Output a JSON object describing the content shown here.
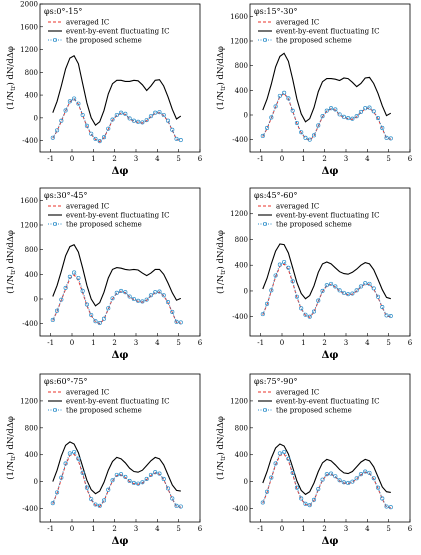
{
  "axis_labels": {
    "x": "Δφ",
    "y_prefix": "(1/N",
    "y_sub": "tr",
    "y_suffix": ") dN/dΔφ"
  },
  "legend": {
    "averaged": "averaged IC",
    "ebe": "event-by-event fluctuating IC",
    "proposed": "the proposed scheme"
  },
  "colors": {
    "averaged": "#e8312a",
    "ebe": "#000000",
    "proposed": "#2a8cc8"
  },
  "chart_data": [
    {
      "type": "line",
      "title": "φs:0°-15°",
      "xlim": [
        -1.5,
        6
      ],
      "ylim": [
        -600,
        2000
      ],
      "yticks": [
        -400,
        0,
        400,
        800,
        1200,
        1600,
        2000
      ],
      "xticks": [
        -1,
        0,
        1,
        2,
        3,
        4,
        5,
        6
      ],
      "x": [
        -0.9,
        -0.7,
        -0.5,
        -0.3,
        -0.1,
        0.1,
        0.3,
        0.5,
        0.7,
        0.9,
        1.1,
        1.3,
        1.5,
        1.7,
        1.9,
        2.1,
        2.3,
        2.5,
        2.7,
        2.9,
        3.1,
        3.3,
        3.5,
        3.7,
        3.9,
        4.1,
        4.3,
        4.5,
        4.7,
        4.9,
        5.1
      ],
      "series": [
        {
          "name": "event-by-event fluctuating IC",
          "values": [
            90,
            290,
            560,
            860,
            1050,
            1090,
            950,
            600,
            260,
            0,
            -130,
            -70,
            130,
            420,
            600,
            660,
            660,
            640,
            640,
            660,
            650,
            580,
            480,
            560,
            660,
            670,
            560,
            370,
            150,
            -20,
            30
          ]
        },
        {
          "name": "averaged IC",
          "values": [
            -360,
            -230,
            -60,
            120,
            280,
            330,
            240,
            40,
            -150,
            -290,
            -380,
            -420,
            -350,
            -200,
            -40,
            40,
            80,
            60,
            -20,
            -60,
            -80,
            -90,
            -50,
            20,
            80,
            90,
            40,
            -60,
            -220,
            -380,
            -400
          ]
        },
        {
          "name": "the proposed scheme",
          "values": [
            -350,
            -220,
            -50,
            130,
            290,
            340,
            250,
            50,
            -140,
            -280,
            -370,
            -410,
            -340,
            -190,
            -30,
            50,
            90,
            70,
            -10,
            -50,
            -70,
            -80,
            -40,
            30,
            90,
            100,
            50,
            -50,
            -210,
            -370,
            -390
          ]
        }
      ]
    },
    {
      "type": "line",
      "title": "φs:15°-30°",
      "xlim": [
        -1.5,
        6
      ],
      "ylim": [
        -600,
        1800
      ],
      "yticks": [
        -400,
        0,
        400,
        800,
        1200,
        1600
      ],
      "xticks": [
        -1,
        0,
        1,
        2,
        3,
        4,
        5,
        6
      ],
      "x": [
        -0.9,
        -0.7,
        -0.5,
        -0.3,
        -0.1,
        0.1,
        0.3,
        0.5,
        0.7,
        0.9,
        1.1,
        1.3,
        1.5,
        1.7,
        1.9,
        2.1,
        2.3,
        2.5,
        2.7,
        2.9,
        3.1,
        3.3,
        3.5,
        3.7,
        3.9,
        4.1,
        4.3,
        4.5,
        4.7,
        4.9,
        5.1
      ],
      "series": [
        {
          "name": "event-by-event fluctuating IC",
          "values": [
            80,
            260,
            500,
            780,
            950,
            1000,
            870,
            580,
            260,
            20,
            -110,
            -60,
            120,
            380,
            540,
            590,
            590,
            580,
            560,
            600,
            590,
            530,
            460,
            510,
            600,
            610,
            510,
            350,
            150,
            -10,
            30
          ]
        },
        {
          "name": "averaged IC",
          "values": [
            -350,
            -220,
            -50,
            130,
            300,
            350,
            260,
            60,
            -140,
            -290,
            -380,
            -410,
            -340,
            -180,
            -30,
            60,
            100,
            80,
            0,
            -40,
            -60,
            -70,
            -30,
            40,
            100,
            110,
            50,
            -60,
            -220,
            -380,
            -390
          ]
        },
        {
          "name": "the proposed scheme",
          "values": [
            -340,
            -210,
            -40,
            140,
            310,
            360,
            270,
            70,
            -130,
            -280,
            -370,
            -400,
            -330,
            -170,
            -20,
            70,
            110,
            90,
            10,
            -30,
            -50,
            -60,
            -20,
            50,
            110,
            120,
            60,
            -50,
            -210,
            -370,
            -380
          ]
        }
      ]
    },
    {
      "type": "line",
      "title": "φs:30°-45°",
      "xlim": [
        -1.5,
        6
      ],
      "ylim": [
        -600,
        1800
      ],
      "yticks": [
        -400,
        0,
        400,
        800,
        1200,
        1600
      ],
      "xticks": [
        -1,
        0,
        1,
        2,
        3,
        4,
        5,
        6
      ],
      "x": [
        -0.9,
        -0.7,
        -0.5,
        -0.3,
        -0.1,
        0.1,
        0.3,
        0.5,
        0.7,
        0.9,
        1.1,
        1.3,
        1.5,
        1.7,
        1.9,
        2.1,
        2.3,
        2.5,
        2.7,
        2.9,
        3.1,
        3.3,
        3.5,
        3.7,
        3.9,
        4.1,
        4.3,
        4.5,
        4.7,
        4.9,
        5.1
      ],
      "series": [
        {
          "name": "event-by-event fluctuating IC",
          "values": [
            40,
            220,
            450,
            700,
            850,
            880,
            760,
            500,
            220,
            0,
            -110,
            -60,
            110,
            340,
            480,
            510,
            500,
            480,
            470,
            480,
            470,
            420,
            380,
            420,
            480,
            480,
            400,
            260,
            100,
            -20,
            10
          ]
        },
        {
          "name": "averaged IC",
          "values": [
            -350,
            -200,
            -20,
            160,
            330,
            390,
            300,
            100,
            -110,
            -270,
            -370,
            -400,
            -330,
            -160,
            0,
            90,
            120,
            100,
            30,
            -10,
            -40,
            -50,
            -20,
            50,
            100,
            110,
            50,
            -60,
            -220,
            -380,
            -390
          ]
        },
        {
          "name": "the proposed scheme",
          "values": [
            -340,
            -190,
            -10,
            180,
            360,
            430,
            340,
            130,
            -90,
            -260,
            -360,
            -390,
            -320,
            -150,
            10,
            100,
            130,
            110,
            40,
            0,
            -30,
            -40,
            -10,
            60,
            110,
            120,
            60,
            -50,
            -210,
            -370,
            -380
          ]
        }
      ]
    },
    {
      "type": "line",
      "title": "φs:45°-60°",
      "xlim": [
        -1.5,
        6
      ],
      "ylim": [
        -700,
        1600
      ],
      "yticks": [
        -400,
        0,
        400,
        800,
        1200
      ],
      "xticks": [
        -1,
        0,
        1,
        2,
        3,
        4,
        5,
        6
      ],
      "x": [
        -0.9,
        -0.7,
        -0.5,
        -0.3,
        -0.1,
        0.1,
        0.3,
        0.5,
        0.7,
        0.9,
        1.1,
        1.3,
        1.5,
        1.7,
        1.9,
        2.1,
        2.3,
        2.5,
        2.7,
        2.9,
        3.1,
        3.3,
        3.5,
        3.7,
        3.9,
        4.1,
        4.3,
        4.5,
        4.7,
        4.9,
        5.1
      ],
      "series": [
        {
          "name": "event-by-event fluctuating IC",
          "values": [
            30,
            200,
            420,
            620,
            730,
            720,
            590,
            360,
            130,
            -40,
            -120,
            -70,
            80,
            290,
            420,
            450,
            420,
            360,
            300,
            270,
            260,
            290,
            340,
            400,
            440,
            420,
            330,
            180,
            20,
            -100,
            -120
          ]
        },
        {
          "name": "averaged IC",
          "values": [
            -370,
            -210,
            0,
            220,
            380,
            420,
            330,
            130,
            -100,
            -280,
            -380,
            -410,
            -330,
            -160,
            -10,
            80,
            100,
            60,
            0,
            -40,
            -60,
            -50,
            0,
            60,
            110,
            100,
            30,
            -100,
            -260,
            -390,
            -400
          ]
        },
        {
          "name": "the proposed scheme",
          "values": [
            -360,
            -200,
            10,
            240,
            410,
            450,
            360,
            150,
            -90,
            -270,
            -370,
            -400,
            -320,
            -150,
            0,
            90,
            110,
            70,
            10,
            -30,
            -50,
            -40,
            10,
            70,
            120,
            110,
            40,
            -90,
            -250,
            -380,
            -390
          ]
        }
      ]
    },
    {
      "type": "line",
      "title": "φs:60°-75°",
      "xlim": [
        -1.5,
        6
      ],
      "ylim": [
        -600,
        1600
      ],
      "yticks": [
        -400,
        0,
        400,
        800,
        1200
      ],
      "xticks": [
        -1,
        0,
        1,
        2,
        3,
        4,
        5,
        6
      ],
      "x": [
        -0.9,
        -0.7,
        -0.5,
        -0.3,
        -0.1,
        0.1,
        0.3,
        0.5,
        0.7,
        0.9,
        1.1,
        1.3,
        1.5,
        1.7,
        1.9,
        2.1,
        2.3,
        2.5,
        2.7,
        2.9,
        3.1,
        3.3,
        3.5,
        3.7,
        3.9,
        4.1,
        4.3,
        4.5,
        4.7,
        4.9,
        5.1
      ],
      "series": [
        {
          "name": "event-by-event fluctuating IC",
          "values": [
            0,
            170,
            380,
            540,
            590,
            560,
            430,
            220,
            20,
            -120,
            -180,
            -140,
            -10,
            170,
            300,
            360,
            340,
            280,
            200,
            150,
            140,
            170,
            240,
            310,
            360,
            340,
            250,
            100,
            -50,
            -130,
            -140
          ]
        },
        {
          "name": "averaged IC",
          "values": [
            -330,
            -170,
            40,
            250,
            390,
            410,
            310,
            110,
            -110,
            -270,
            -350,
            -370,
            -290,
            -130,
            10,
            90,
            100,
            60,
            0,
            -30,
            -40,
            -20,
            30,
            90,
            130,
            110,
            30,
            -110,
            -260,
            -370,
            -380
          ]
        },
        {
          "name": "the proposed scheme",
          "values": [
            -320,
            -160,
            60,
            270,
            420,
            440,
            340,
            130,
            -90,
            -260,
            -340,
            -360,
            -280,
            -120,
            20,
            100,
            110,
            70,
            10,
            -20,
            -30,
            -10,
            40,
            100,
            140,
            120,
            40,
            -100,
            -250,
            -360,
            -370
          ]
        }
      ]
    },
    {
      "type": "line",
      "title": "φs:75°-90°",
      "xlim": [
        -1.5,
        6
      ],
      "ylim": [
        -600,
        1600
      ],
      "yticks": [
        -400,
        0,
        400,
        800,
        1200
      ],
      "xticks": [
        -1,
        0,
        1,
        2,
        3,
        4,
        5,
        6
      ],
      "x": [
        -0.9,
        -0.7,
        -0.5,
        -0.3,
        -0.1,
        0.1,
        0.3,
        0.5,
        0.7,
        0.9,
        1.1,
        1.3,
        1.5,
        1.7,
        1.9,
        2.1,
        2.3,
        2.5,
        2.7,
        2.9,
        3.1,
        3.3,
        3.5,
        3.7,
        3.9,
        4.1,
        4.3,
        4.5,
        4.7,
        4.9,
        5.1
      ],
      "series": [
        {
          "name": "event-by-event fluctuating IC",
          "values": [
            -20,
            150,
            350,
            500,
            560,
            530,
            410,
            210,
            10,
            -130,
            -190,
            -150,
            -20,
            150,
            280,
            330,
            310,
            250,
            180,
            130,
            120,
            150,
            220,
            290,
            330,
            310,
            220,
            70,
            -80,
            -150,
            -160
          ]
        },
        {
          "name": "averaged IC",
          "values": [
            -320,
            -160,
            50,
            250,
            390,
            410,
            310,
            110,
            -110,
            -260,
            -340,
            -360,
            -280,
            -120,
            20,
            100,
            110,
            70,
            10,
            -20,
            -30,
            -10,
            40,
            100,
            140,
            120,
            40,
            -100,
            -260,
            -380,
            -390
          ]
        },
        {
          "name": "the proposed scheme",
          "values": [
            -310,
            -150,
            60,
            270,
            420,
            440,
            340,
            130,
            -90,
            -250,
            -330,
            -350,
            -270,
            -110,
            30,
            110,
            120,
            80,
            20,
            -10,
            -20,
            0,
            50,
            110,
            150,
            130,
            50,
            -90,
            -250,
            -370,
            -380
          ]
        }
      ]
    }
  ]
}
